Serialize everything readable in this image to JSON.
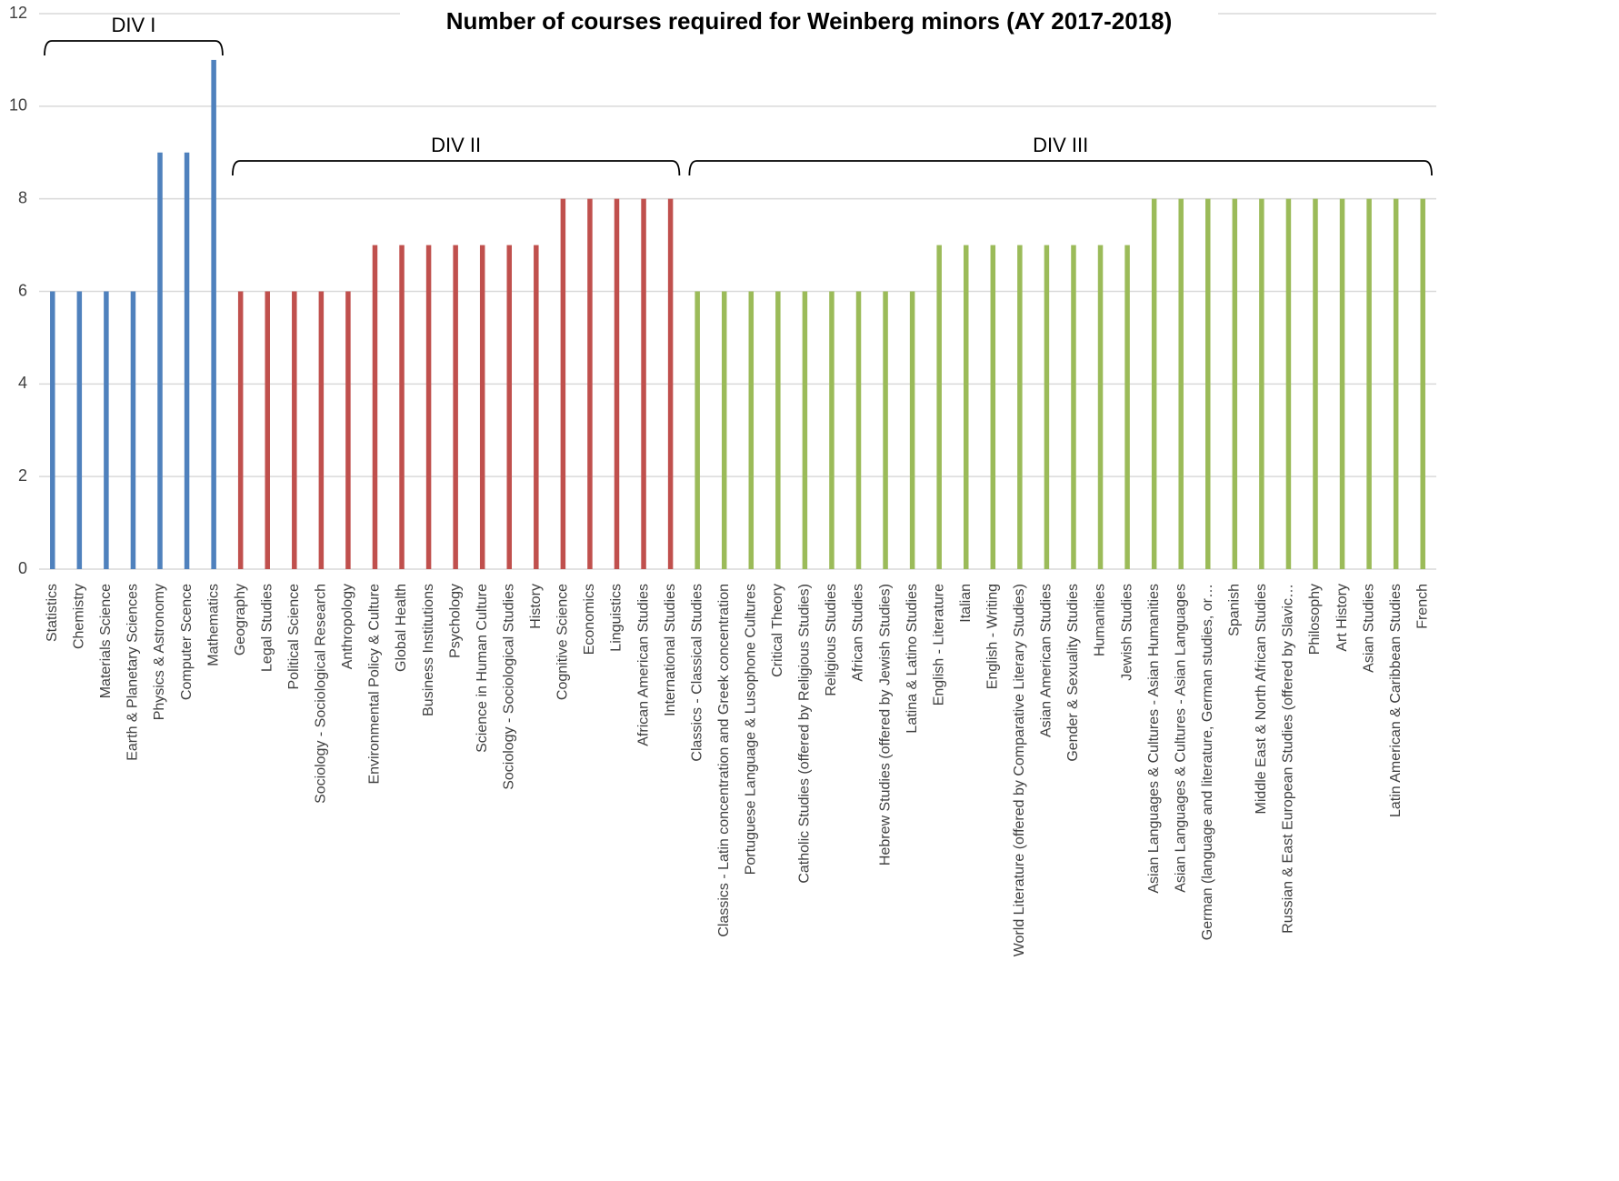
{
  "chart_data": {
    "type": "bar",
    "title": "Number of courses required for Weinberg minors (AY 2017-2018)",
    "categories": [
      "Statistics",
      "Chemistry",
      "Materials Science",
      "Earth & Planetary Sciences",
      "Physics & Astronomy",
      "Computer Scence",
      "Mathematics",
      "Geography",
      "Legal Studies",
      "Political Science",
      "Sociology - Sociological Research",
      "Anthropology",
      "Environmental Policy & Culture",
      "Global Health",
      "Business Institutions",
      "Psychology",
      "Science in Human Culture",
      "Sociology - Sociological Studies",
      "History",
      "Cognitive Science",
      "Economics",
      "Linguistics",
      "African American Studies",
      "International Studies",
      "Classics - Classical Studies",
      "Classics - Latin concentration and Greek concentration",
      "Portuguese Language & Lusophone Cultures",
      "Critical Theory",
      "Catholic Studies (offered by Religious Studies)",
      "Religious Studies",
      "African Studies",
      "Hebrew Studies (offered by Jewish Studies)",
      "Latina & Latino Studies",
      "English - Literature",
      "Italian",
      "English - Writing",
      "World Literature (offered by Comparative Literary Studies)",
      "Asian American Studies",
      "Gender & Sexuality Studies",
      "Humanities",
      "Jewish Studies",
      "Asian Languages & Cultures - Asian Humanities",
      "Asian Languages & Cultures - Asian Languages",
      "German (language and literature, German studies, or…",
      "Spanish",
      "Middle East & North African Studies",
      "Russian & East European Studies (offered by Slavic…",
      "Philosophy",
      "Art History",
      "Asian Studies",
      "Latin American & Caribbean Studies",
      "French"
    ],
    "values": [
      6,
      6,
      6,
      6,
      9,
      9,
      11,
      6,
      6,
      6,
      6,
      6,
      7,
      7,
      7,
      7,
      7,
      7,
      7,
      8,
      8,
      8,
      8,
      8,
      6,
      6,
      6,
      6,
      6,
      6,
      6,
      6,
      6,
      7,
      7,
      7,
      7,
      7,
      7,
      7,
      7,
      8,
      8,
      8,
      8,
      8,
      8,
      8,
      8,
      8,
      8,
      8
    ],
    "groups": [
      {
        "label": "DIV I",
        "color": "#4f81bd",
        "size": 7
      },
      {
        "label": "DIV II",
        "color": "#c0504d",
        "size": 17
      },
      {
        "label": "DIV III",
        "color": "#9bbb59",
        "size": 28
      }
    ],
    "ylim": [
      0,
      12
    ],
    "yticks": [
      0,
      2,
      4,
      6,
      8,
      10,
      12
    ],
    "grid": true
  }
}
